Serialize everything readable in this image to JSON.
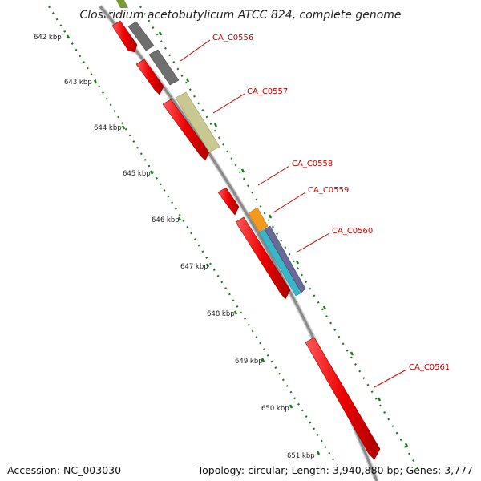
{
  "title": "Clostridium acetobutylicum ATCC 824, complete genome",
  "accession_text": "Accession: NC_003030",
  "summary_text": "Topology: circular; Length: 3,940,880 bp; Genes: 3,777",
  "ticks": [
    "642 kbp",
    "643 kbp",
    "644 kbp",
    "645 kbp",
    "646 kbp",
    "647 kbp",
    "648 kbp",
    "649 kbp",
    "650 kbp",
    "651 kbp"
  ],
  "genes": [
    {
      "label": "CA_C0556"
    },
    {
      "label": "CA_C0557"
    },
    {
      "label": "CA_C0558"
    },
    {
      "label": "CA_C0559"
    },
    {
      "label": "CA_C0560"
    },
    {
      "label": "CA_C0561"
    }
  ],
  "colors": {
    "backbone": "#888888",
    "tick_dots": "#1a7a1a",
    "cds_forward": "#ee0000",
    "feature_gray": "#707070",
    "feature_olive": "#c8c890",
    "feature_orange": "#f39a1a",
    "feature_cyan": "#3ab7c7",
    "feature_indigo": "#6a6a99",
    "feature_green": "#7a9a3a",
    "label_red": "#cc0000"
  }
}
